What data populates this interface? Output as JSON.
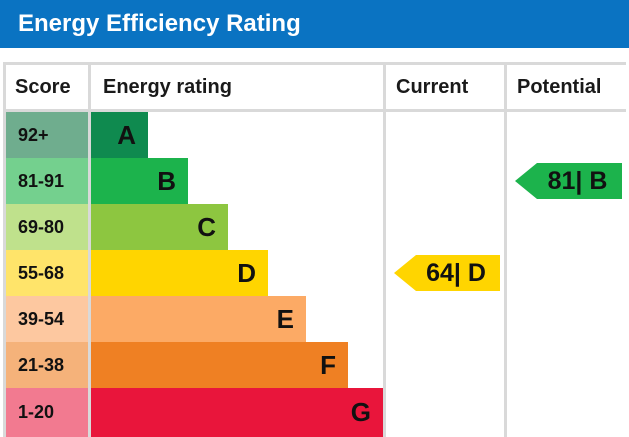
{
  "header": {
    "title": "Energy Efficiency Rating"
  },
  "table": {
    "col_score": "Score",
    "col_rating": "Energy rating",
    "col_current": "Current",
    "col_potential": "Potential"
  },
  "chart_data": {
    "type": "bar",
    "title": "Energy Efficiency Rating",
    "bands": [
      {
        "score": "92+",
        "letter": "A",
        "color": "#0f8a4f",
        "score_bg": "#6fad8e"
      },
      {
        "score": "81-91",
        "letter": "B",
        "color": "#1cb34c",
        "score_bg": "#74d08e"
      },
      {
        "score": "69-80",
        "letter": "C",
        "color": "#8dc640",
        "score_bg": "#bfe18c"
      },
      {
        "score": "55-68",
        "letter": "D",
        "color": "#ffd500",
        "score_bg": "#ffe46a"
      },
      {
        "score": "39-54",
        "letter": "E",
        "color": "#fcaa65",
        "score_bg": "#fdc8a0"
      },
      {
        "score": "21-38",
        "letter": "F",
        "color": "#ef8023",
        "score_bg": "#f5b27a"
      },
      {
        "score": "1-20",
        "letter": "G",
        "color": "#e9153b",
        "score_bg": "#f27a90"
      }
    ],
    "current": {
      "value": 64,
      "band": "D",
      "label": "64| D",
      "color": "#ffd500"
    },
    "potential": {
      "value": 81,
      "band": "B",
      "label": "81| B",
      "color": "#1cb34c"
    }
  }
}
